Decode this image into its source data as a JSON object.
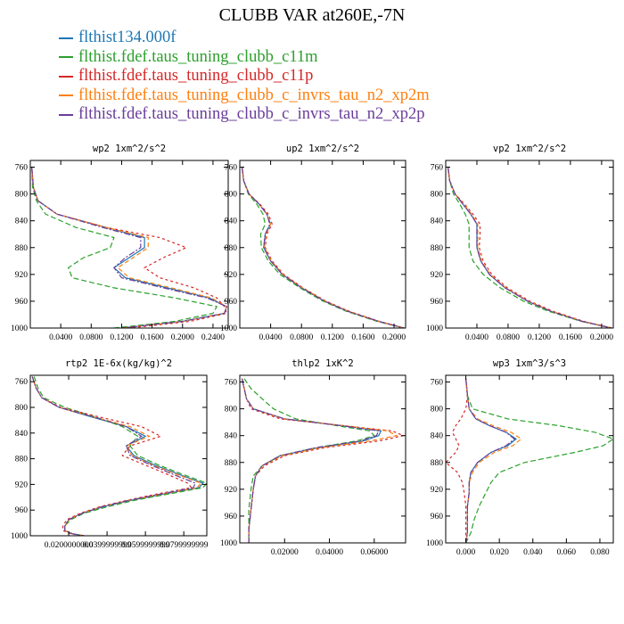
{
  "title": "CLUBB VAR at260E,-7N",
  "legend": [
    {
      "name": "flthist134.000f",
      "color": "#1f77b4"
    },
    {
      "name": "flthist.fdef.taus_tuning_clubb_c11m",
      "color": "#2ca02c"
    },
    {
      "name": "flthist.fdef.taus_tuning_clubb_c11p",
      "color": "#d62728"
    },
    {
      "name": "flthist.fdef.taus_tuning_clubb_c_invrs_tau_n2_xp2m",
      "color": "#ff7f0e"
    },
    {
      "name": "flthist.fdef.taus_tuning_clubb_c_invrs_tau_n2_xp2p",
      "color": "#6a3d9a"
    }
  ],
  "chart_data": [
    {
      "type": "line",
      "title": "wp2  1xm^2/s^2",
      "xlim": [
        0,
        0.26
      ],
      "ylim": [
        750,
        1000
      ],
      "y_inverted": true,
      "xticks": [
        "0.0400",
        "0.0800",
        "0.1200",
        "0.1600",
        "0.2000",
        "0.2400"
      ],
      "yticks": [
        "760",
        "800",
        "840",
        "880",
        "920",
        "960",
        "1000"
      ],
      "y": [
        760,
        790,
        810,
        830,
        850,
        865,
        880,
        895,
        910,
        925,
        940,
        955,
        968,
        978,
        990,
        1000
      ],
      "series": [
        {
          "values": [
            0.002,
            0.004,
            0.01,
            0.035,
            0.1,
            0.15,
            0.15,
            0.13,
            0.11,
            0.125,
            0.18,
            0.235,
            0.258,
            0.255,
            0.2,
            0.12
          ]
        },
        {
          "values": [
            0.002,
            0.003,
            0.008,
            0.02,
            0.06,
            0.11,
            0.105,
            0.07,
            0.05,
            0.055,
            0.11,
            0.19,
            0.245,
            0.24,
            0.19,
            0.11
          ]
        },
        {
          "values": [
            0.002,
            0.004,
            0.01,
            0.035,
            0.1,
            0.17,
            0.205,
            0.175,
            0.15,
            0.17,
            0.215,
            0.245,
            0.255,
            0.258,
            0.21,
            0.13
          ]
        },
        {
          "values": [
            0.002,
            0.004,
            0.01,
            0.035,
            0.1,
            0.155,
            0.155,
            0.135,
            0.115,
            0.13,
            0.185,
            0.238,
            0.258,
            0.255,
            0.2,
            0.12
          ]
        },
        {
          "values": [
            0.002,
            0.004,
            0.01,
            0.035,
            0.095,
            0.145,
            0.145,
            0.125,
            0.11,
            0.12,
            0.175,
            0.232,
            0.258,
            0.255,
            0.2,
            0.12
          ]
        }
      ]
    },
    {
      "type": "line",
      "title": "up2  1xm^2/s^2",
      "xlim": [
        0,
        0.215
      ],
      "ylim": [
        750,
        1000
      ],
      "y_inverted": true,
      "xticks": [
        "0.0400",
        "0.0800",
        "0.1200",
        "0.1600",
        "0.2000"
      ],
      "yticks": [
        "760",
        "800",
        "840",
        "880",
        "920",
        "960",
        "1000"
      ],
      "y": [
        760,
        780,
        800,
        815,
        830,
        845,
        860,
        880,
        900,
        920,
        940,
        960,
        975,
        990,
        1000
      ],
      "series": [
        {
          "values": [
            0.003,
            0.005,
            0.012,
            0.025,
            0.035,
            0.04,
            0.033,
            0.031,
            0.04,
            0.055,
            0.08,
            0.11,
            0.14,
            0.18,
            0.213
          ]
        },
        {
          "values": [
            0.003,
            0.005,
            0.011,
            0.022,
            0.03,
            0.033,
            0.027,
            0.028,
            0.037,
            0.052,
            0.078,
            0.108,
            0.138,
            0.178,
            0.213
          ]
        },
        {
          "values": [
            0.003,
            0.005,
            0.012,
            0.026,
            0.037,
            0.042,
            0.035,
            0.033,
            0.042,
            0.057,
            0.082,
            0.112,
            0.142,
            0.181,
            0.213
          ]
        },
        {
          "values": [
            0.003,
            0.005,
            0.012,
            0.025,
            0.035,
            0.04,
            0.034,
            0.032,
            0.041,
            0.056,
            0.081,
            0.111,
            0.141,
            0.18,
            0.213
          ]
        },
        {
          "values": [
            0.003,
            0.005,
            0.012,
            0.025,
            0.035,
            0.039,
            0.033,
            0.031,
            0.04,
            0.055,
            0.08,
            0.11,
            0.14,
            0.18,
            0.213
          ]
        }
      ]
    },
    {
      "type": "line",
      "title": "vp2  1xm^2/s^2",
      "xlim": [
        0,
        0.215
      ],
      "ylim": [
        750,
        1000
      ],
      "y_inverted": true,
      "xticks": [
        "0.0400",
        "0.0800",
        "0.1200",
        "0.1600",
        "0.2000"
      ],
      "yticks": [
        "760",
        "800",
        "840",
        "880",
        "920",
        "960",
        "1000"
      ],
      "y": [
        760,
        780,
        800,
        815,
        830,
        845,
        860,
        880,
        900,
        920,
        940,
        960,
        975,
        990,
        1000
      ],
      "series": [
        {
          "values": [
            0.003,
            0.005,
            0.012,
            0.022,
            0.032,
            0.04,
            0.04,
            0.04,
            0.045,
            0.056,
            0.076,
            0.105,
            0.135,
            0.175,
            0.213
          ]
        },
        {
          "values": [
            0.003,
            0.005,
            0.01,
            0.018,
            0.025,
            0.03,
            0.03,
            0.03,
            0.035,
            0.048,
            0.07,
            0.1,
            0.132,
            0.174,
            0.213
          ]
        },
        {
          "values": [
            0.003,
            0.005,
            0.012,
            0.024,
            0.035,
            0.044,
            0.044,
            0.043,
            0.048,
            0.059,
            0.079,
            0.108,
            0.138,
            0.177,
            0.213
          ]
        },
        {
          "values": [
            0.003,
            0.005,
            0.012,
            0.023,
            0.033,
            0.041,
            0.041,
            0.041,
            0.046,
            0.057,
            0.077,
            0.106,
            0.136,
            0.176,
            0.213
          ]
        },
        {
          "values": [
            0.003,
            0.005,
            0.012,
            0.022,
            0.032,
            0.04,
            0.04,
            0.04,
            0.045,
            0.056,
            0.076,
            0.105,
            0.135,
            0.175,
            0.213
          ]
        }
      ]
    },
    {
      "type": "line",
      "title": "rtp2  1E-6x(kg/kg)^2",
      "xlim": [
        0,
        0.092
      ],
      "ylim": [
        750,
        1000
      ],
      "y_inverted": true,
      "xticks": [
        "0.0200000000",
        "0.0399999999",
        "0.0599999999",
        "0.0799999999"
      ],
      "yticks": [
        "760",
        "800",
        "840",
        "880",
        "920",
        "960",
        "1000"
      ],
      "y": [
        752,
        770,
        785,
        800,
        815,
        830,
        845,
        860,
        875,
        890,
        905,
        918,
        925,
        935,
        945,
        955,
        965,
        975,
        985,
        992,
        997,
        1000
      ],
      "series": [
        {
          "values": [
            0.001,
            0.003,
            0.006,
            0.015,
            0.032,
            0.05,
            0.06,
            0.05,
            0.054,
            0.065,
            0.078,
            0.09,
            0.088,
            0.07,
            0.052,
            0.038,
            0.027,
            0.02,
            0.018,
            0.018,
            0.022,
            0.028
          ]
        },
        {
          "values": [
            0.002,
            0.004,
            0.007,
            0.018,
            0.034,
            0.048,
            0.056,
            0.052,
            0.056,
            0.067,
            0.08,
            0.092,
            0.09,
            0.072,
            0.054,
            0.04,
            0.028,
            0.021,
            0.018,
            0.018,
            0.022,
            0.028
          ]
        },
        {
          "values": [
            0.001,
            0.003,
            0.006,
            0.016,
            0.036,
            0.058,
            0.068,
            0.052,
            0.048,
            0.06,
            0.072,
            0.082,
            0.084,
            0.066,
            0.05,
            0.036,
            0.026,
            0.019,
            0.017,
            0.017,
            0.021,
            0.028
          ]
        },
        {
          "values": [
            0.001,
            0.003,
            0.006,
            0.015,
            0.033,
            0.052,
            0.062,
            0.05,
            0.053,
            0.064,
            0.077,
            0.089,
            0.087,
            0.069,
            0.051,
            0.037,
            0.027,
            0.02,
            0.018,
            0.018,
            0.022,
            0.028
          ]
        },
        {
          "values": [
            0.001,
            0.003,
            0.006,
            0.015,
            0.033,
            0.05,
            0.058,
            0.05,
            0.052,
            0.063,
            0.075,
            0.086,
            0.085,
            0.068,
            0.051,
            0.037,
            0.027,
            0.02,
            0.018,
            0.018,
            0.022,
            0.028
          ]
        }
      ]
    },
    {
      "type": "line",
      "title": "thlp2  1xK^2",
      "xlim": [
        0,
        0.074
      ],
      "ylim": [
        750,
        1000
      ],
      "y_inverted": true,
      "xticks": [
        "0.02000",
        "0.04000",
        "0.06000"
      ],
      "yticks": [
        "760",
        "800",
        "840",
        "880",
        "920",
        "960",
        "1000"
      ],
      "y": [
        755,
        770,
        785,
        800,
        815,
        825,
        833,
        840,
        848,
        858,
        870,
        885,
        900,
        920,
        950,
        980,
        1000
      ],
      "series": [
        {
          "values": [
            0.001,
            0.002,
            0.003,
            0.006,
            0.02,
            0.045,
            0.063,
            0.062,
            0.055,
            0.035,
            0.018,
            0.01,
            0.007,
            0.006,
            0.005,
            0.004,
            0.004
          ]
        },
        {
          "values": [
            0.002,
            0.005,
            0.01,
            0.015,
            0.025,
            0.043,
            0.058,
            0.06,
            0.052,
            0.034,
            0.018,
            0.01,
            0.006,
            0.005,
            0.004,
            0.004,
            0.004
          ]
        },
        {
          "values": [
            0.001,
            0.002,
            0.003,
            0.005,
            0.018,
            0.046,
            0.068,
            0.073,
            0.062,
            0.038,
            0.02,
            0.011,
            0.007,
            0.006,
            0.005,
            0.004,
            0.004
          ]
        },
        {
          "values": [
            0.001,
            0.002,
            0.003,
            0.006,
            0.02,
            0.046,
            0.066,
            0.07,
            0.058,
            0.036,
            0.019,
            0.01,
            0.007,
            0.006,
            0.005,
            0.004,
            0.004
          ]
        },
        {
          "values": [
            0.001,
            0.002,
            0.003,
            0.006,
            0.02,
            0.045,
            0.062,
            0.061,
            0.054,
            0.034,
            0.018,
            0.01,
            0.007,
            0.006,
            0.005,
            0.004,
            0.004
          ]
        }
      ]
    },
    {
      "type": "line",
      "title": "wp3  1xm^3/s^3",
      "xlim": [
        -0.012,
        0.088
      ],
      "ylim": [
        750,
        1000
      ],
      "y_inverted": true,
      "xticks": [
        "0.000",
        "0.020",
        "0.040",
        "0.060",
        "0.080"
      ],
      "yticks": [
        "760",
        "800",
        "840",
        "880",
        "920",
        "960",
        "1000"
      ],
      "y": [
        755,
        780,
        800,
        815,
        825,
        835,
        845,
        855,
        865,
        880,
        895,
        910,
        925,
        945,
        965,
        985,
        1000
      ],
      "series": [
        {
          "values": [
            0.0,
            0.001,
            0.002,
            0.006,
            0.014,
            0.024,
            0.03,
            0.025,
            0.015,
            0.007,
            0.003,
            0.002,
            0.002,
            0.001,
            0.001,
            0.001,
            0.0
          ]
        },
        {
          "values": [
            0.0,
            0.001,
            0.004,
            0.025,
            0.055,
            0.077,
            0.088,
            0.082,
            0.065,
            0.035,
            0.02,
            0.015,
            0.012,
            0.008,
            0.005,
            0.003,
            0.0
          ]
        },
        {
          "values": [
            0.0,
            0.001,
            0.0,
            -0.003,
            -0.006,
            -0.008,
            -0.006,
            -0.004,
            -0.006,
            -0.012,
            -0.005,
            -0.002,
            -0.001,
            0.0,
            0.0,
            0.0,
            0.0
          ]
        },
        {
          "values": [
            0.0,
            0.001,
            0.002,
            0.007,
            0.016,
            0.027,
            0.033,
            0.028,
            0.017,
            0.008,
            0.004,
            0.002,
            0.002,
            0.001,
            0.001,
            0.001,
            0.0
          ]
        },
        {
          "values": [
            0.0,
            0.001,
            0.002,
            0.006,
            0.014,
            0.024,
            0.029,
            0.024,
            0.015,
            0.007,
            0.003,
            0.002,
            0.002,
            0.001,
            0.001,
            0.001,
            0.0
          ]
        }
      ]
    }
  ]
}
